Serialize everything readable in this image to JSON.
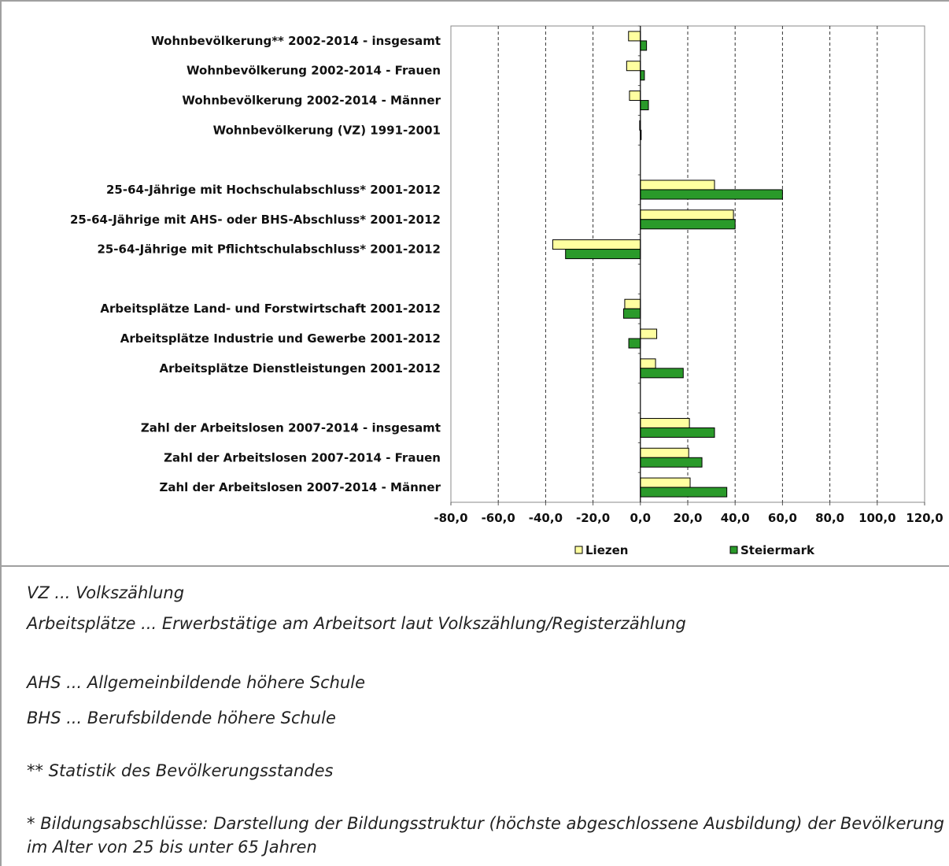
{
  "chart_data": {
    "type": "bar",
    "orientation": "horizontal",
    "categories": [
      "Wohnbevölkerung** 2002-2014 - insgesamt",
      "Wohnbevölkerung 2002-2014 - Frauen",
      "Wohnbevölkerung 2002-2014 - Männer",
      "Wohnbevölkerung (VZ) 1991-2001",
      "",
      "25-64-Jährige mit Hochschulabschluss* 2001-2012",
      "25-64-Jährige mit AHS- oder BHS-Abschluss* 2001-2012",
      "25-64-Jährige mit Pflichtschulabschluss* 2001-2012",
      "",
      "Arbeitsplätze Land- und Forstwirtschaft 2001-2012",
      "Arbeitsplätze Industrie und Gewerbe 2001-2012",
      "Arbeitsplätze Dienstleistungen 2001-2012",
      "",
      "Zahl der Arbeitslosen 2007-2014 - insgesamt",
      "Zahl der Arbeitslosen 2007-2014 - Frauen",
      "Zahl der Arbeitslosen 2007-2014 - Männer"
    ],
    "series": [
      {
        "name": "Liezen",
        "color": "#ffffa0",
        "values": [
          -5.0,
          -5.8,
          -4.6,
          -0.3,
          null,
          31.3,
          39.3,
          -37.0,
          null,
          -6.6,
          6.9,
          6.4,
          null,
          20.7,
          20.4,
          21.0
        ]
      },
      {
        "name": "Steiermark",
        "color": "#2a9a2a",
        "values": [
          2.6,
          1.7,
          3.4,
          0.3,
          null,
          60.0,
          40.0,
          -31.6,
          null,
          -7.1,
          -4.9,
          18.1,
          null,
          31.3,
          26.0,
          36.5
        ]
      }
    ],
    "xlim": [
      -80,
      120
    ],
    "xticks": [
      -80,
      -60,
      -40,
      -20,
      0,
      20,
      40,
      60,
      80,
      100,
      120
    ],
    "xtick_labels": [
      "-80,0",
      "-60,0",
      "-40,0",
      "-20,0",
      "0,0",
      "20,0",
      "40,0",
      "60,0",
      "80,0",
      "100,0",
      "120,0"
    ],
    "grid": "vertical-dashed",
    "legend": "bottom"
  },
  "notes": [
    "VZ ... Volkszählung",
    "Arbeitsplätze ... Erwerbstätige am Arbeitsort laut Volkszählung/Registerzählung",
    "AHS ... Allgemeinbildende höhere Schule",
    "BHS ... Berufsbildende höhere Schule",
    "** Statistik des Bevölkerungsstandes",
    "* Bildungsabschlüsse: Darstellung der Bildungsstruktur (höchste abgeschlossene Ausbildung) der Bevölkerung im Alter von 25 bis unter 65 Jahren"
  ]
}
